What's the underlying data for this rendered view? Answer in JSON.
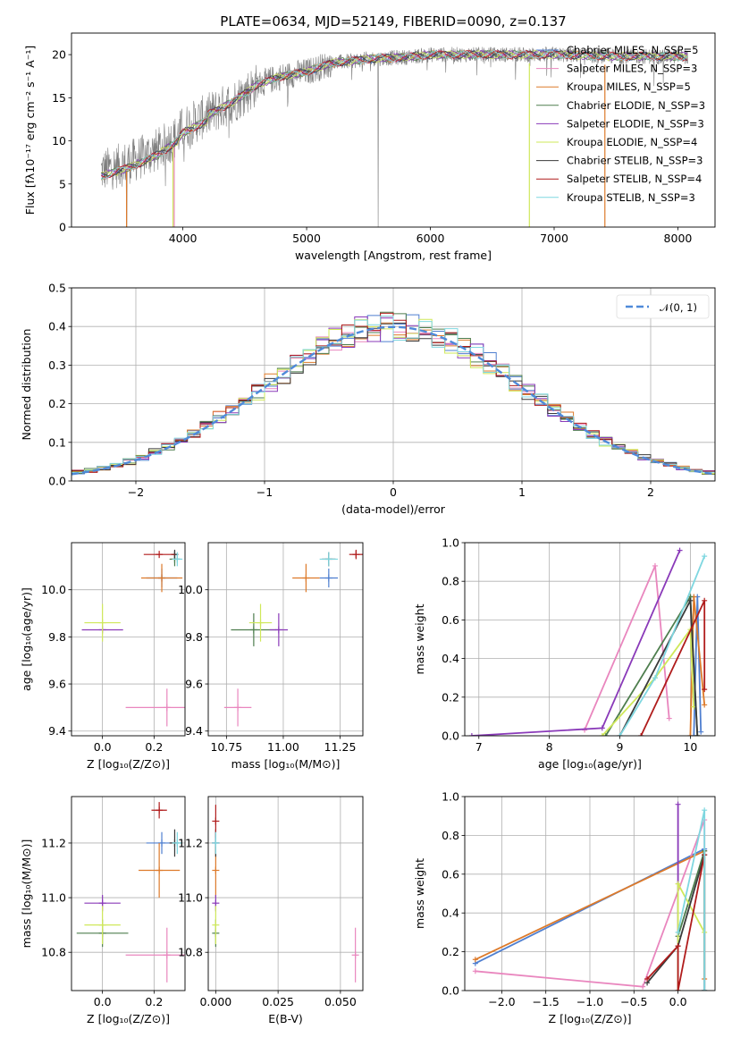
{
  "chart_data": [
    {
      "type": "line",
      "title": "PLATE=0634, MJD=52149, FIBERID=0090, z=0.137",
      "xlabel": "wavelength [Angstrom, rest frame]",
      "ylabel": "Flux [fλ10⁻¹⁷ erg cm⁻² s⁻¹ A⁻¹]",
      "xlim": [
        3100,
        8300
      ],
      "ylim": [
        0,
        22.5
      ],
      "xticks": [
        "4000",
        "5000",
        "6000",
        "7000",
        "8000"
      ],
      "yticks": [
        "0",
        "5",
        "10",
        "15",
        "20"
      ],
      "grid": false,
      "legend_position": "top-right",
      "observed_color": "#7f7f7f",
      "approx_continuum": {
        "x": [
          3340,
          3500,
          3650,
          3800,
          3950,
          4000,
          4200,
          4400,
          4600,
          4800,
          5000,
          5200,
          5500,
          5800,
          6000,
          6200,
          6500,
          6800,
          7000,
          7500,
          8000,
          8080
        ],
        "y": [
          6.5,
          7.2,
          8.0,
          9.0,
          10.5,
          11.5,
          13.0,
          14.5,
          16.5,
          17.5,
          18.0,
          19.0,
          19.5,
          19.7,
          20.0,
          20.0,
          20.0,
          20.0,
          20.0,
          19.8,
          19.8,
          19.8
        ]
      },
      "series": [
        {
          "name": "Chabrier MILES, N_SSP=5",
          "color": "#4f7fd0"
        },
        {
          "name": "Salpeter MILES, N_SSP=3",
          "color": "#e986be"
        },
        {
          "name": "Kroupa MILES, N_SSP=5",
          "color": "#dd7a2a"
        },
        {
          "name": "Chabrier ELODIE, N_SSP=3",
          "color": "#4e7e4e"
        },
        {
          "name": "Salpeter ELODIE, N_SSP=3",
          "color": "#8a3ab9"
        },
        {
          "name": "Kroupa ELODIE, N_SSP=4",
          "color": "#cfe85a"
        },
        {
          "name": "Chabrier STELIB, N_SSP=3",
          "color": "#3a3a3a"
        },
        {
          "name": "Salpeter STELIB, N_SSP=4",
          "color": "#b01c1c"
        },
        {
          "name": "Kroupa STELIB, N_SSP=3",
          "color": "#7fd7e0"
        }
      ]
    },
    {
      "type": "line",
      "xlabel": "(data-model)/error",
      "ylabel": "Normed distribution",
      "xlim": [
        -2.5,
        2.5
      ],
      "ylim": [
        0,
        0.5
      ],
      "xticks": [
        "−2",
        "−1",
        "0",
        "1",
        "2"
      ],
      "yticks": [
        "0.0",
        "0.1",
        "0.2",
        "0.3",
        "0.4",
        "0.5"
      ],
      "grid": true,
      "legend_position": "top-right",
      "legend_label": "𝒩(0, 1)",
      "reference_curve": {
        "name": "𝒩(0, 1)",
        "color": "#4f8ad9",
        "style": "dashed",
        "mean": 0,
        "sigma": 1
      }
    },
    {
      "type": "scatter",
      "xlabel": "Z [log₁₀(Z/Z⊙)]",
      "ylabel": "age  [log₁₀(age/yr)]",
      "xlim": [
        -0.12,
        0.32
      ],
      "ylim": [
        9.38,
        10.2
      ],
      "xticks": [
        "0.0",
        "0.2"
      ],
      "yticks": [
        "9.4",
        "9.6",
        "9.8",
        "10.0"
      ],
      "grid": true,
      "points": [
        {
          "color": "#4f7fd0",
          "x": 0.23,
          "xerr": 0.06,
          "y": 10.05,
          "yerr": 0.04
        },
        {
          "color": "#e986be",
          "x": 0.25,
          "xerr": 0.16,
          "y": 9.5,
          "yerr": 0.08
        },
        {
          "color": "#dd7a2a",
          "x": 0.23,
          "xerr": 0.08,
          "y": 10.05,
          "yerr": 0.06
        },
        {
          "color": "#4e7e4e",
          "x": 0.28,
          "xerr": 0.02,
          "y": 10.13,
          "yerr": 0.03
        },
        {
          "color": "#8a3ab9",
          "x": 0.0,
          "xerr": 0.08,
          "y": 9.83,
          "yerr": 0.0
        },
        {
          "color": "#cfe85a",
          "x": 0.0,
          "xerr": 0.07,
          "y": 9.86,
          "yerr": 0.08
        },
        {
          "color": "#3a3a3a",
          "x": 0.28,
          "xerr": 0.01,
          "y": 10.15,
          "yerr": 0.02
        },
        {
          "color": "#b01c1c",
          "x": 0.22,
          "xerr": 0.06,
          "y": 10.15,
          "yerr": 0.0
        },
        {
          "color": "#7fd7e0",
          "x": 0.29,
          "xerr": 0.02,
          "y": 10.13,
          "yerr": 0.03
        }
      ]
    },
    {
      "type": "scatter",
      "xlabel": "mass [log₁₀(M/M⊙)]",
      "ylabel": "",
      "xlim": [
        10.67,
        11.35
      ],
      "ylim": [
        9.38,
        10.2
      ],
      "xticks": [
        "10.75",
        "11.00",
        "11.25"
      ],
      "yticks": [
        "9.4",
        "9.6",
        "9.8",
        "10.0"
      ],
      "grid": true,
      "points": [
        {
          "color": "#4f7fd0",
          "x": 11.2,
          "xerr": 0.04,
          "y": 10.05,
          "yerr": 0.04
        },
        {
          "color": "#e986be",
          "x": 10.8,
          "xerr": 0.06,
          "y": 9.5,
          "yerr": 0.08
        },
        {
          "color": "#dd7a2a",
          "x": 11.1,
          "xerr": 0.06,
          "y": 10.05,
          "yerr": 0.06
        },
        {
          "color": "#4e7e4e",
          "x": 10.87,
          "xerr": 0.1,
          "y": 9.83,
          "yerr": 0.07
        },
        {
          "color": "#8a3ab9",
          "x": 10.98,
          "xerr": 0.04,
          "y": 9.83,
          "yerr": 0.07
        },
        {
          "color": "#cfe85a",
          "x": 10.9,
          "xerr": 0.05,
          "y": 9.86,
          "yerr": 0.08
        },
        {
          "color": "#3a3a3a",
          "x": 11.2,
          "xerr": 0.03,
          "y": 10.13,
          "yerr": 0.03
        },
        {
          "color": "#b01c1c",
          "x": 11.32,
          "xerr": 0.03,
          "y": 10.15,
          "yerr": 0.02
        },
        {
          "color": "#7fd7e0",
          "x": 11.2,
          "xerr": 0.04,
          "y": 10.13,
          "yerr": 0.03
        }
      ]
    },
    {
      "type": "line",
      "xlabel": "age  [log₁₀(age/yr)]",
      "ylabel": "mass weight",
      "xlim": [
        6.8,
        10.35
      ],
      "ylim": [
        0,
        1
      ],
      "xticks": [
        "7",
        "8",
        "9",
        "10"
      ],
      "yticks": [
        "0.0",
        "0.2",
        "0.4",
        "0.6",
        "0.8",
        "1.0"
      ],
      "grid": true,
      "series": [
        {
          "color": "#4f7fd0",
          "x": [
            10.05,
            10.1,
            10.15
          ],
          "y": [
            0.0,
            0.72,
            0.02
          ]
        },
        {
          "color": "#e986be",
          "x": [
            8.5,
            9.5,
            9.7
          ],
          "y": [
            0.03,
            0.88,
            0.09
          ]
        },
        {
          "color": "#dd7a2a",
          "x": [
            10.0,
            10.05,
            10.2
          ],
          "y": [
            0.0,
            0.72,
            0.16
          ]
        },
        {
          "color": "#4e7e4e",
          "x": [
            8.8,
            10.0,
            10.1
          ],
          "y": [
            0.0,
            0.72,
            0.0
          ]
        },
        {
          "color": "#8a3ab9",
          "x": [
            6.9,
            8.75,
            9.85
          ],
          "y": [
            0.0,
            0.04,
            0.96
          ]
        },
        {
          "color": "#cfe85a",
          "x": [
            8.75,
            9.5,
            10.0,
            10.05
          ],
          "y": [
            0.0,
            0.3,
            0.55,
            0.15
          ]
        },
        {
          "color": "#3a3a3a",
          "x": [
            9.0,
            10.0,
            10.1
          ],
          "y": [
            0.0,
            0.7,
            0.0
          ]
        },
        {
          "color": "#b01c1c",
          "x": [
            9.3,
            10.2,
            10.2
          ],
          "y": [
            0.0,
            0.7,
            0.24
          ]
        },
        {
          "color": "#7fd7e0",
          "x": [
            9.0,
            9.5,
            10.2
          ],
          "y": [
            0.0,
            0.3,
            0.93
          ]
        }
      ]
    },
    {
      "type": "scatter",
      "xlabel": "Z [log₁₀(Z/Z⊙)]",
      "ylabel": "mass [log₁₀(M/M⊙)]",
      "xlim": [
        -0.12,
        0.32
      ],
      "ylim": [
        10.66,
        11.37
      ],
      "xticks": [
        "0.0",
        "0.2"
      ],
      "yticks": [
        "10.8",
        "11.0",
        "11.2"
      ],
      "grid": true,
      "points": [
        {
          "color": "#4f7fd0",
          "x": 0.23,
          "xerr": 0.06,
          "y": 11.2,
          "yerr": 0.04
        },
        {
          "color": "#e986be",
          "x": 0.25,
          "xerr": 0.16,
          "y": 10.79,
          "yerr": 0.1
        },
        {
          "color": "#dd7a2a",
          "x": 0.22,
          "xerr": 0.08,
          "y": 11.1,
          "yerr": 0.1
        },
        {
          "color": "#4e7e4e",
          "x": 0.0,
          "xerr": 0.1,
          "y": 10.87,
          "yerr": 0.05
        },
        {
          "color": "#8a3ab9",
          "x": 0.0,
          "xerr": 0.07,
          "y": 10.98,
          "yerr": 0.03
        },
        {
          "color": "#cfe85a",
          "x": 0.0,
          "xerr": 0.07,
          "y": 10.9,
          "yerr": 0.07
        },
        {
          "color": "#3a3a3a",
          "x": 0.28,
          "xerr": 0.02,
          "y": 11.2,
          "yerr": 0.05
        },
        {
          "color": "#b01c1c",
          "x": 0.22,
          "xerr": 0.03,
          "y": 11.32,
          "yerr": 0.03
        },
        {
          "color": "#7fd7e0",
          "x": 0.29,
          "xerr": 0.02,
          "y": 11.2,
          "yerr": 0.04
        }
      ]
    },
    {
      "type": "scatter",
      "xlabel": "E(B-V)",
      "ylabel": "",
      "xlim": [
        -0.003,
        0.059
      ],
      "ylim": [
        10.66,
        11.37
      ],
      "xticks": [
        "0.000",
        "0.025",
        "0.050"
      ],
      "yticks": [
        "10.8",
        "11.0",
        "11.2"
      ],
      "grid": true,
      "points": [
        {
          "color": "#4f7fd0",
          "x": 0.0,
          "xerr": 0,
          "y": 11.2,
          "yerr": 0.04
        },
        {
          "color": "#e986be",
          "x": 0.056,
          "xerr": 0,
          "y": 10.79,
          "yerr": 0.1
        },
        {
          "color": "#dd7a2a",
          "x": 0.0,
          "xerr": 0,
          "y": 11.1,
          "yerr": 0.1
        },
        {
          "color": "#4e7e4e",
          "x": 0.0,
          "xerr": 0,
          "y": 10.87,
          "yerr": 0.05
        },
        {
          "color": "#8a3ab9",
          "x": 0.0,
          "xerr": 0,
          "y": 10.98,
          "yerr": 0.03
        },
        {
          "color": "#cfe85a",
          "x": 0.0,
          "xerr": 0,
          "y": 10.9,
          "yerr": 0.07
        },
        {
          "color": "#3a3a3a",
          "x": 0.0,
          "xerr": 0,
          "y": 11.2,
          "yerr": 0.05
        },
        {
          "color": "#b01c1c",
          "x": 0.0,
          "xerr": 0,
          "y": 11.28,
          "yerr": 0.06
        },
        {
          "color": "#7fd7e0",
          "x": 0.0,
          "xerr": 0,
          "y": 11.2,
          "yerr": 0.04
        }
      ]
    },
    {
      "type": "line",
      "xlabel": "Z [log₁₀(Z/Z⊙)]",
      "ylabel": "mass weight",
      "xlim": [
        -2.42,
        0.42
      ],
      "ylim": [
        0,
        1
      ],
      "xticks": [
        "−2.0",
        "−1.5",
        "−1.0",
        "−0.5",
        "0.0"
      ],
      "yticks": [
        "0.0",
        "0.2",
        "0.4",
        "0.6",
        "0.8",
        "1.0"
      ],
      "grid": true,
      "series": [
        {
          "color": "#4f7fd0",
          "x": [
            -2.3,
            0.3,
            0.3
          ],
          "y": [
            0.14,
            0.73,
            0.0
          ]
        },
        {
          "color": "#e986be",
          "x": [
            -2.3,
            -0.4,
            0.3,
            0.3
          ],
          "y": [
            0.1,
            0.02,
            0.88,
            0.0
          ]
        },
        {
          "color": "#dd7a2a",
          "x": [
            -2.3,
            0.3,
            0.3
          ],
          "y": [
            0.16,
            0.72,
            0.06
          ]
        },
        {
          "color": "#4e7e4e",
          "x": [
            0.0,
            0.3,
            0.3
          ],
          "y": [
            0.28,
            0.72,
            0.0
          ]
        },
        {
          "color": "#8a3ab9",
          "x": [
            0.0,
            0.0
          ],
          "y": [
            0.0,
            0.96
          ]
        },
        {
          "color": "#cfe85a",
          "x": [
            0.0,
            0.0,
            0.3
          ],
          "y": [
            0.0,
            0.55,
            0.3
          ]
        },
        {
          "color": "#3a3a3a",
          "x": [
            -0.35,
            0.0,
            0.3
          ],
          "y": [
            0.04,
            0.23,
            0.7
          ]
        },
        {
          "color": "#b01c1c",
          "x": [
            -0.35,
            0.0,
            0.0,
            0.3
          ],
          "y": [
            0.06,
            0.23,
            0.0,
            0.7
          ]
        },
        {
          "color": "#7fd7e0",
          "x": [
            0.0,
            0.3,
            0.3
          ],
          "y": [
            0.3,
            0.93,
            0.0
          ]
        }
      ]
    }
  ]
}
